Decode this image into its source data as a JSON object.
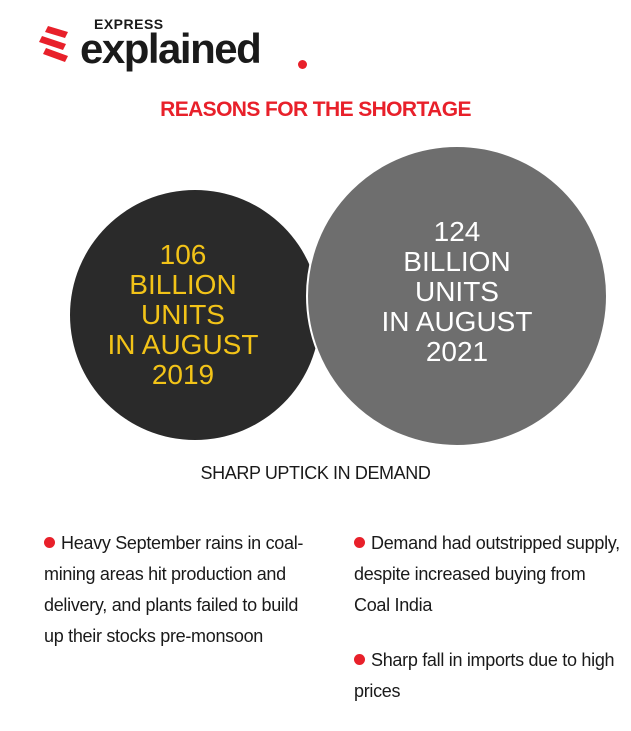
{
  "brand": {
    "express": "EXPRESS",
    "explained": "explained",
    "accent_color": "#e8202a"
  },
  "title": "REASONS FOR THE SHORTAGE",
  "circles": [
    {
      "lines": [
        "106",
        "BILLION",
        "UNITS",
        "IN AUGUST",
        "2019"
      ],
      "fill": "#2a2a2a",
      "text_color": "#f2c318"
    },
    {
      "lines": [
        "124",
        "BILLION",
        "UNITS",
        "IN AUGUST",
        "2021"
      ],
      "fill": "#6e6e6e",
      "text_color": "#ffffff"
    }
  ],
  "subtitle": "SHARP UPTICK IN DEMAND",
  "bullets_left": [
    "Heavy September rains in coal-mining areas hit production and delivery, and plants failed to build up their stocks pre-monsoon"
  ],
  "bullets_right": [
    "Demand had outstripped supply, despite increased buying from Coal India",
    "Sharp fall in imports due to high prices"
  ]
}
